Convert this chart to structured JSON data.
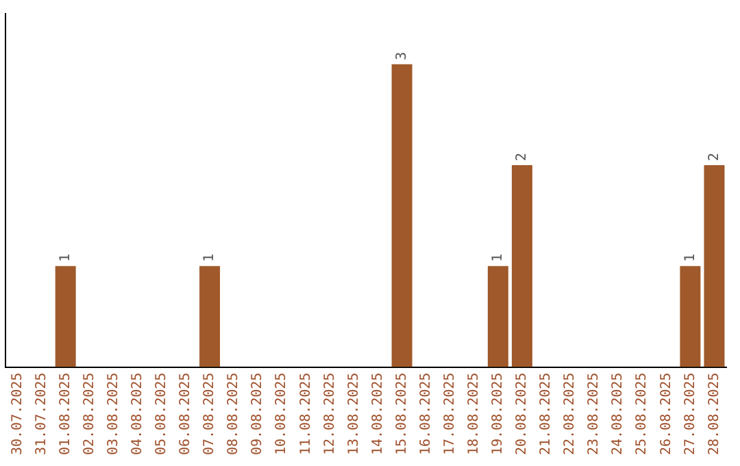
{
  "chart_data": {
    "type": "bar",
    "categories": [
      "30.07.2025",
      "31.07.2025",
      "01.08.2025",
      "02.08.2025",
      "03.08.2025",
      "04.08.2025",
      "05.08.2025",
      "06.08.2025",
      "07.08.2025",
      "08.08.2025",
      "09.08.2025",
      "10.08.2025",
      "11.08.2025",
      "12.08.2025",
      "13.08.2025",
      "14.08.2025",
      "15.08.2025",
      "16.08.2025",
      "17.08.2025",
      "18.08.2025",
      "19.08.2025",
      "20.08.2025",
      "21.08.2025",
      "22.08.2025",
      "23.08.2025",
      "24.08.2025",
      "25.08.2025",
      "26.08.2025",
      "27.08.2025",
      "28.08.2025"
    ],
    "values": [
      0,
      0,
      1,
      0,
      0,
      0,
      0,
      0,
      1,
      0,
      0,
      0,
      0,
      0,
      0,
      0,
      3,
      0,
      0,
      0,
      1,
      2,
      0,
      0,
      0,
      0,
      0,
      0,
      1,
      2
    ],
    "value_labels": [
      null,
      null,
      "1",
      null,
      null,
      null,
      null,
      null,
      "1",
      null,
      null,
      null,
      null,
      null,
      null,
      null,
      "3",
      null,
      null,
      null,
      "1",
      "2",
      null,
      null,
      null,
      null,
      null,
      null,
      "1",
      "2"
    ],
    "color": "#a0592a",
    "tick_labels": "x",
    "grid": false,
    "legend": false
  }
}
